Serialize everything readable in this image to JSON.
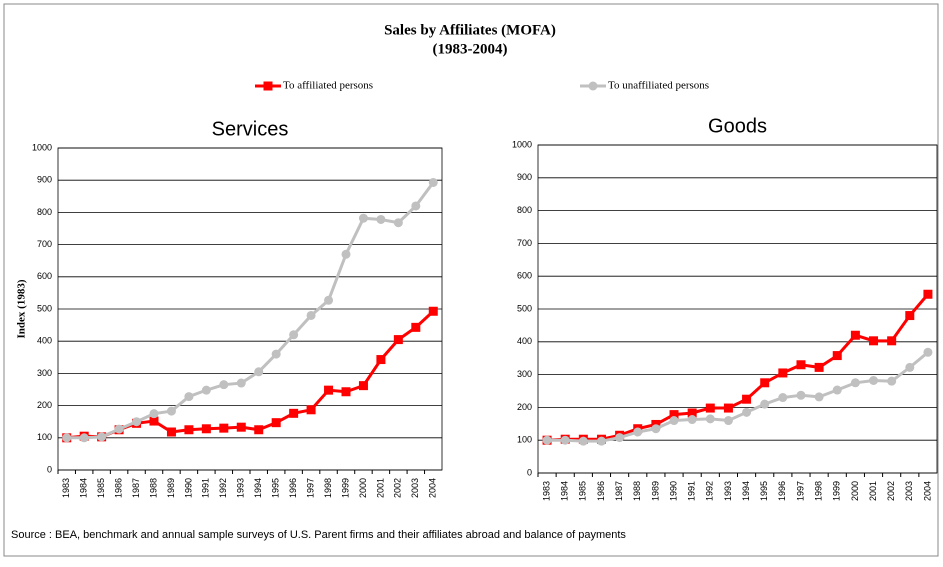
{
  "title": "Sales by Affiliates (MOFA)",
  "subtitle": "(1983-2004)",
  "source": "Source : BEA,  benchmark and annual sample surveys of U.S. Parent firms and their affiliates abroad and balance of payments",
  "chart_data": [
    {
      "type": "line",
      "title": "Services",
      "ylabel": "Index (1983)",
      "categories": [
        "1983",
        "1984",
        "1985",
        "1986",
        "1987",
        "1988",
        "1989",
        "1990",
        "1991",
        "1992",
        "1993",
        "1994",
        "1995",
        "1996",
        "1997",
        "1998",
        "1999",
        "2000",
        "2001",
        "2002",
        "2003",
        "2004"
      ],
      "series": [
        {
          "name": "To affiliated persons",
          "color": "#ff0000",
          "marker": "square",
          "values": [
            100,
            105,
            103,
            125,
            145,
            152,
            118,
            125,
            128,
            130,
            133,
            125,
            147,
            176,
            187,
            248,
            243,
            262,
            343,
            405,
            443,
            493
          ]
        },
        {
          "name": "To unaffiliated persons",
          "color": "#c0c0c0",
          "marker": "circle",
          "values": [
            100,
            100,
            103,
            127,
            150,
            175,
            183,
            228,
            248,
            265,
            270,
            305,
            360,
            420,
            480,
            527,
            670,
            782,
            778,
            768,
            820,
            893
          ]
        }
      ],
      "ylim": [
        0,
        1000
      ],
      "yticks": [
        0,
        100,
        200,
        300,
        400,
        500,
        600,
        700,
        800,
        900,
        1000
      ],
      "grid": true
    },
    {
      "type": "line",
      "title": "Goods",
      "categories": [
        "1983",
        "1984",
        "1985",
        "1986",
        "1987",
        "1988",
        "1989",
        "1990",
        "1991",
        "1992",
        "1993",
        "1994",
        "1995",
        "1996",
        "1997",
        "1998",
        "1999",
        "2000",
        "2001",
        "2002",
        "2003",
        "2004"
      ],
      "series": [
        {
          "name": "To affiliated persons",
          "color": "#ff0000",
          "marker": "square",
          "values": [
            100,
            103,
            103,
            103,
            115,
            135,
            148,
            178,
            183,
            198,
            198,
            225,
            275,
            305,
            330,
            322,
            358,
            420,
            403,
            403,
            480,
            545
          ]
        },
        {
          "name": "To unaffiliated persons",
          "color": "#c0c0c0",
          "marker": "circle",
          "values": [
            100,
            100,
            97,
            97,
            108,
            125,
            135,
            160,
            163,
            165,
            160,
            185,
            210,
            230,
            237,
            232,
            253,
            275,
            282,
            280,
            322,
            368
          ]
        }
      ],
      "ylim": [
        0,
        1000
      ],
      "yticks": [
        0,
        100,
        200,
        300,
        400,
        500,
        600,
        700,
        800,
        900,
        1000
      ],
      "grid": true
    }
  ]
}
